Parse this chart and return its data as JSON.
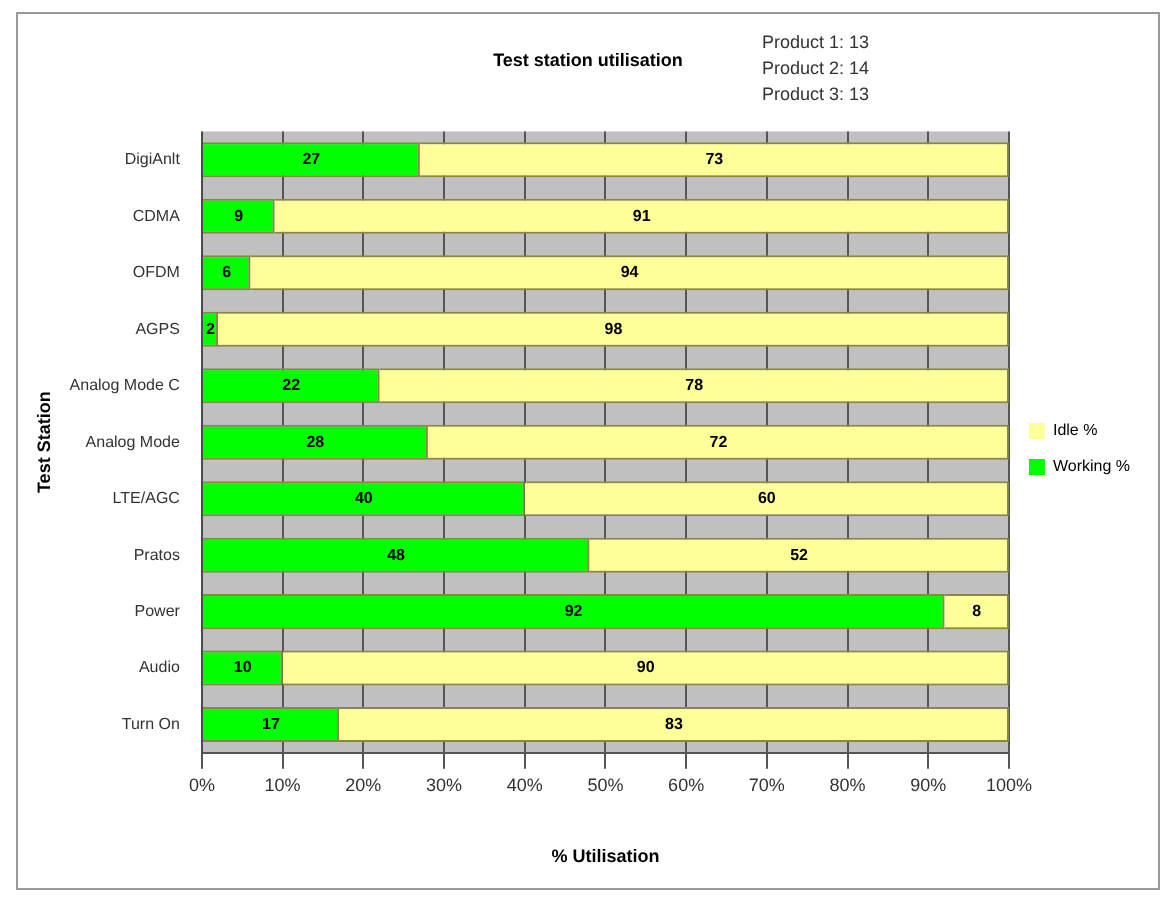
{
  "chart_data": {
    "type": "bar",
    "orientation": "horizontal",
    "stacked": true,
    "title": "Test station utilisation",
    "annotations": [
      "Product 1: 13",
      "Product 2: 14",
      "Product 3: 13"
    ],
    "xlabel": "% Utilisation",
    "ylabel": "Test Station",
    "categories": [
      "DigiAnlt",
      "CDMA",
      "OFDM",
      "AGPS",
      "Analog Mode C",
      "Analog Mode",
      "LTE/AGC",
      "Pratos",
      "Power",
      "Audio",
      "Turn On"
    ],
    "series": [
      {
        "name": "Working %",
        "color": "#00ff00",
        "values": [
          27,
          9,
          6,
          2,
          22,
          28,
          40,
          48,
          92,
          10,
          17
        ]
      },
      {
        "name": "Idle %",
        "color": "#ffff99",
        "values": [
          73,
          91,
          94,
          98,
          78,
          72,
          60,
          52,
          8,
          90,
          83
        ]
      }
    ],
    "xlim": [
      0,
      100
    ],
    "xticks": [
      {
        "value": 0,
        "label": "0%"
      },
      {
        "value": 10,
        "label": "10%"
      },
      {
        "value": 20,
        "label": "20%"
      },
      {
        "value": 30,
        "label": "30%"
      },
      {
        "value": 40,
        "label": "40%"
      },
      {
        "value": 50,
        "label": "50%"
      },
      {
        "value": 60,
        "label": "60%"
      },
      {
        "value": 70,
        "label": "70%"
      },
      {
        "value": 80,
        "label": "80%"
      },
      {
        "value": 90,
        "label": "90%"
      },
      {
        "value": 100,
        "label": "100%"
      }
    ],
    "grid": "x",
    "legend": "right",
    "data_labels": true
  }
}
